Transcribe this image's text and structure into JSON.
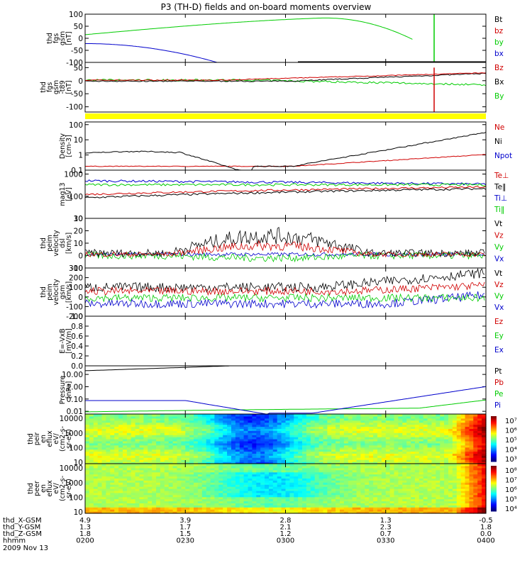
{
  "title": "P3 (TH-D) fields and on-board moments overview",
  "date": "2009 Nov 13",
  "colors": {
    "black": "#000000",
    "red": "#d00000",
    "green": "#00cc00",
    "blue": "#0000cc",
    "yellow": "#ffff00"
  },
  "chart_data": [
    {
      "type": "line",
      "panel": "fgs",
      "ylabel": [
        "thd",
        "fgs",
        "gsm",
        "[nT]"
      ],
      "ylim": [
        -100,
        100
      ],
      "yticks": [
        "100",
        "50",
        "0",
        "-50",
        "-100"
      ],
      "legend": [
        {
          "name": "Bt",
          "color": "black"
        },
        {
          "name": "bz",
          "color": "red"
        },
        {
          "name": "by",
          "color": "green"
        },
        {
          "name": "bx",
          "color": "blue"
        }
      ]
    },
    {
      "type": "line",
      "panel": "fgs-t89",
      "ylabel": [
        "thd",
        "fgs",
        "gsm",
        "-t89",
        "[nT]"
      ],
      "ylim": [
        -120,
        70
      ],
      "yticks": [
        "50",
        "0",
        "-50",
        "-100"
      ],
      "legend": [
        {
          "name": "Bz",
          "color": "red"
        },
        {
          "name": "Bx",
          "color": "black"
        },
        {
          "name": "By",
          "color": "green"
        }
      ]
    },
    {
      "type": "line",
      "panel": "density",
      "ylabel": [
        "Density",
        "[cm-3]"
      ],
      "yscale": "log",
      "ylim": [
        0.1,
        150
      ],
      "yticks": [
        "100",
        "10",
        "1",
        "0.1"
      ],
      "legend": [
        {
          "name": "Ne",
          "color": "red"
        },
        {
          "name": "Ni",
          "color": "black"
        },
        {
          "name": "Npot",
          "color": "blue"
        }
      ]
    },
    {
      "type": "line",
      "panel": "temperature",
      "ylabel": [
        "mag13",
        "[eV]"
      ],
      "yscale": "log",
      "ylim": [
        10,
        1500
      ],
      "yticks": [
        "1000",
        "100",
        "10"
      ],
      "legend": [
        {
          "name": "Te⊥",
          "color": "red"
        },
        {
          "name": "Te‖",
          "color": "black"
        },
        {
          "name": "Ti⊥",
          "color": "blue"
        },
        {
          "name": "Ti‖",
          "color": "green"
        }
      ]
    },
    {
      "type": "line",
      "panel": "velocity-dsl",
      "ylabel": [
        "thd",
        "peim",
        "velocity",
        "dsl",
        "[km/s]"
      ],
      "ylim": [
        -10,
        30
      ],
      "yticks": [
        "30",
        "20",
        "10",
        "0",
        "-10"
      ],
      "legend": [
        {
          "name": "Vt",
          "color": "black"
        },
        {
          "name": "Vz",
          "color": "red"
        },
        {
          "name": "Vy",
          "color": "green"
        },
        {
          "name": "Vx",
          "color": "blue"
        }
      ]
    },
    {
      "type": "line",
      "panel": "velocity-gsm",
      "ylabel": [
        "thd",
        "peim",
        "velocity",
        "gsm",
        "[km/s]"
      ],
      "ylim": [
        -200,
        300
      ],
      "yticks": [
        "300",
        "200",
        "100",
        "0",
        "-100",
        "-200"
      ],
      "legend": [
        {
          "name": "Vt",
          "color": "black"
        },
        {
          "name": "Vz",
          "color": "red"
        },
        {
          "name": "Vy",
          "color": "green"
        },
        {
          "name": "Vx",
          "color": "blue"
        }
      ]
    },
    {
      "type": "line",
      "panel": "efield",
      "ylabel": [
        "E=-VxB",
        "[mV/m]"
      ],
      "ylim": [
        0,
        1
      ],
      "yticks": [
        "1.0",
        "0.8",
        "0.6",
        "0.4",
        "0.2",
        "0.0"
      ],
      "legend": [
        {
          "name": "Ez",
          "color": "red"
        },
        {
          "name": "Ey",
          "color": "green"
        },
        {
          "name": "Ex",
          "color": "blue"
        }
      ]
    },
    {
      "type": "line",
      "panel": "pressure",
      "ylabel": [
        "Pressure",
        "[nPa]"
      ],
      "yscale": "log",
      "ylim": [
        0.006,
        50
      ],
      "yticks": [
        "10.00",
        "1.00",
        "0.10",
        "0.01"
      ],
      "legend": [
        {
          "name": "Pt",
          "color": "black"
        },
        {
          "name": "Pb",
          "color": "red"
        },
        {
          "name": "Pe",
          "color": "green"
        },
        {
          "name": "Pi",
          "color": "blue"
        }
      ]
    },
    {
      "type": "heatmap",
      "panel": "ion-spectrogram",
      "ylabel": [
        "thd",
        "peir",
        "en",
        "eflux",
        "eV/",
        "(cm2-s-",
        "sr-eV)"
      ],
      "yscale": "log",
      "ylim": [
        8,
        20000
      ],
      "yticks": [
        "10000",
        "1000",
        "100",
        "10"
      ],
      "colorbar": [
        "10⁷",
        "10⁶",
        "10⁵",
        "10⁴",
        "10³"
      ]
    },
    {
      "type": "heatmap",
      "panel": "electron-spectrogram",
      "ylabel": [
        "thd",
        "peer",
        "en",
        "eflux",
        "eV/",
        "(cm2-s-",
        "sr-eV)"
      ],
      "yscale": "log",
      "ylim": [
        8,
        20000
      ],
      "yticks": [
        "10000",
        "1000",
        "100",
        "10"
      ],
      "colorbar": [
        "10⁸",
        "10⁷",
        "10⁶",
        "10⁵",
        "10⁴"
      ]
    }
  ],
  "xaxis": {
    "rows": [
      {
        "label": "thd_X-GSM",
        "values": [
          "4.9",
          "3.9",
          "2.8",
          "1.3",
          "-0.5"
        ]
      },
      {
        "label": "thd_Y-GSM",
        "values": [
          "1.3",
          "1.7",
          "2.1",
          "2.3",
          "1.8"
        ]
      },
      {
        "label": "thd_Z-GSM",
        "values": [
          "1.8",
          "1.5",
          "1.2",
          "0.7",
          "0.0"
        ]
      },
      {
        "label": "hhmm",
        "values": [
          "0200",
          "0230",
          "0300",
          "0330",
          "0400"
        ]
      }
    ]
  }
}
